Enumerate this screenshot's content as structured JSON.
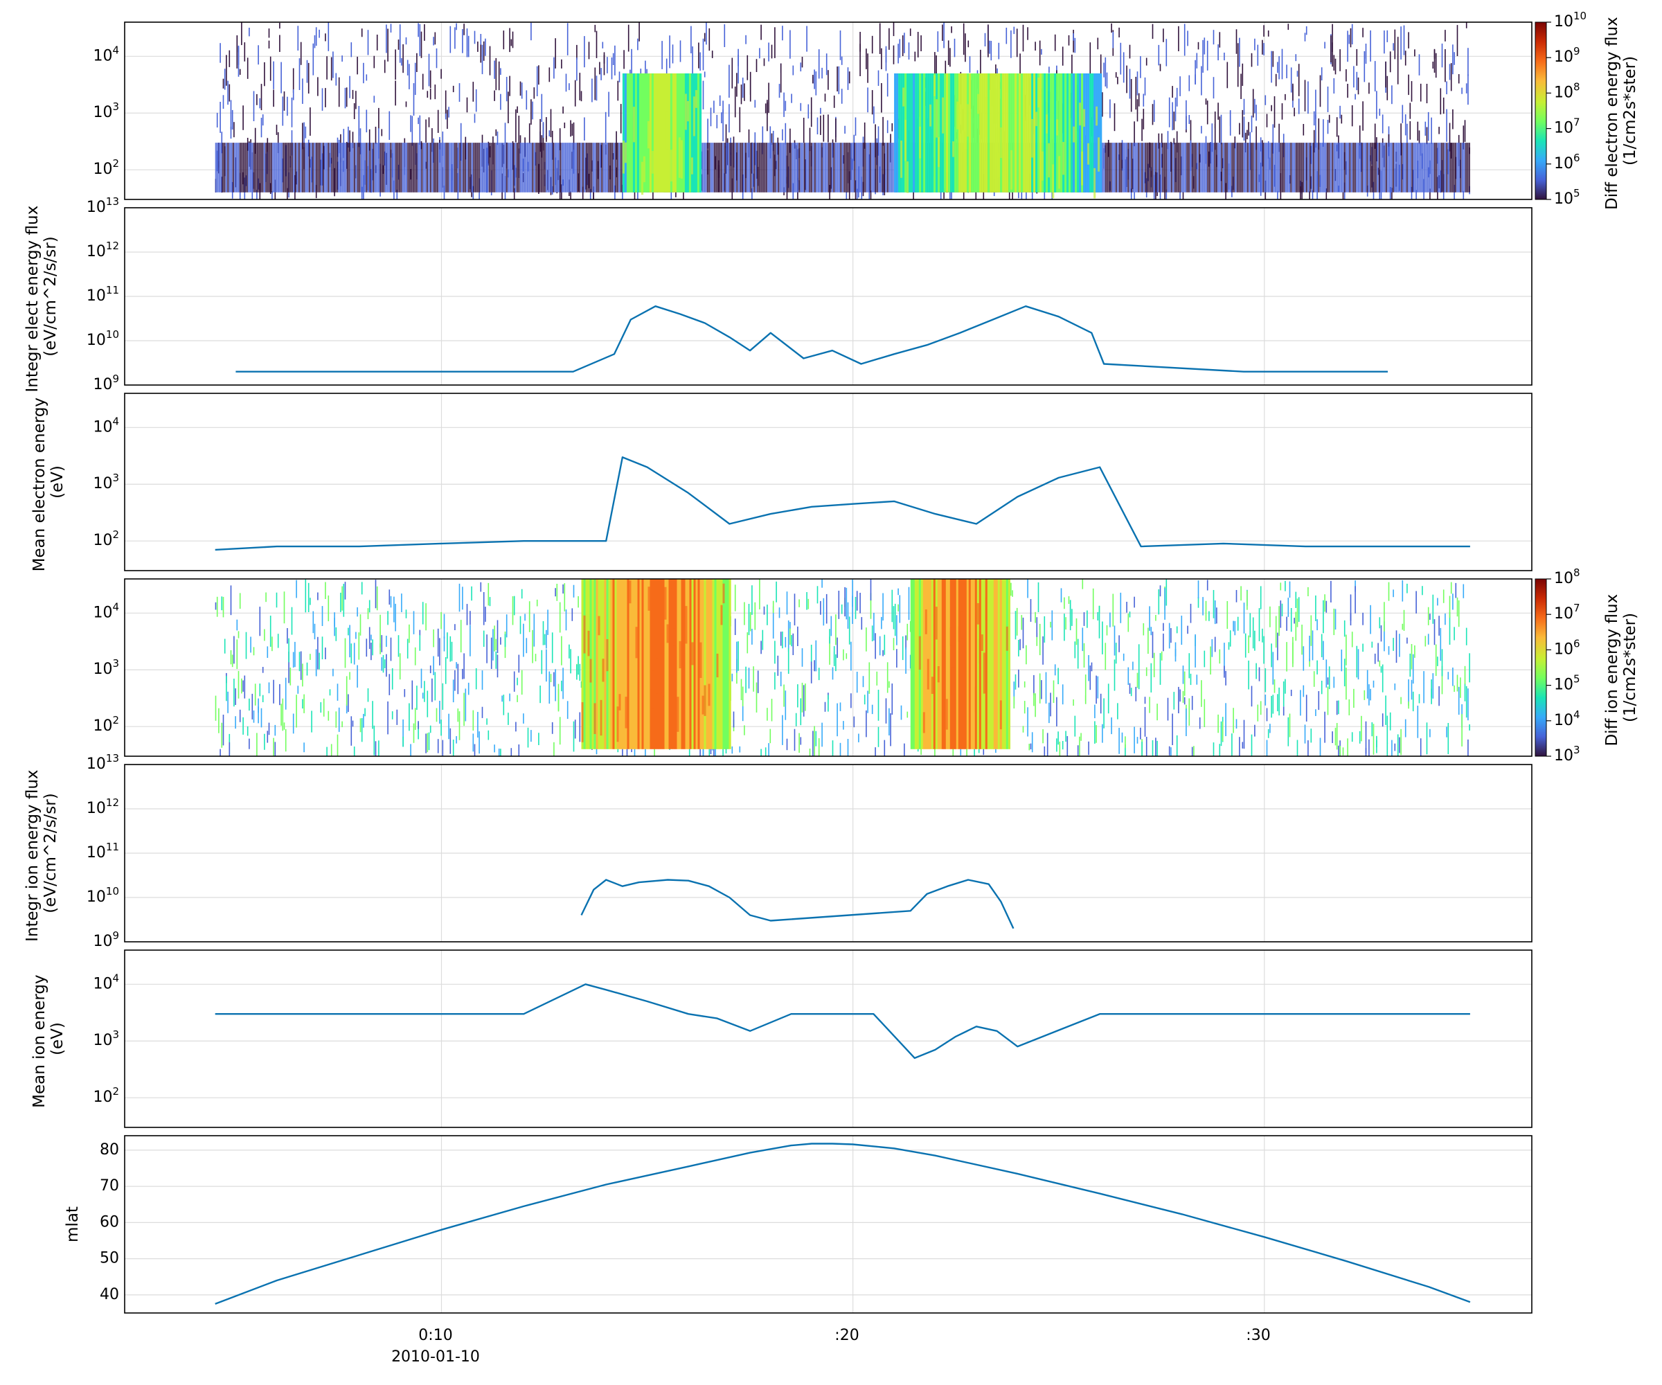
{
  "chart_data": [
    {
      "type": "heatmap",
      "panel": "electron-spectrogram",
      "ylabel": "",
      "yscale": "log",
      "ylim": [
        30,
        40000
      ],
      "ytick_labels": [
        "10^2",
        "10^3",
        "10^4"
      ],
      "colorbar": {
        "label_lines": [
          "Diff electron energy flux",
          "(1/cm2s*ster)"
        ],
        "scale": "log",
        "range": [
          100000,
          10000000000
        ],
        "tick_labels": [
          "10^5",
          "10^6",
          "10^7",
          "10^8",
          "10^9",
          "10^10"
        ]
      },
      "active_intervals_min": [
        [
          14.4,
          16.3
        ],
        [
          21.0,
          26.0
        ]
      ],
      "sparse_interval_min": [
        4.5,
        35.0
      ]
    },
    {
      "type": "line",
      "panel": "integrated-electron-energy-flux",
      "ylabel_lines": [
        "Integr elect energy flux",
        "(eV/cm^2/s/sr)"
      ],
      "yscale": "log",
      "ylim": [
        1000000000,
        10000000000000
      ],
      "ytick_labels": [
        "10^9",
        "10^10",
        "10^11",
        "10^12",
        "10^13"
      ],
      "x": [
        5.0,
        9.8,
        13.2,
        14.2,
        14.6,
        15.2,
        15.8,
        16.4,
        17.0,
        17.5,
        18.0,
        18.8,
        19.5,
        20.2,
        21.0,
        21.8,
        22.6,
        23.4,
        24.2,
        25.0,
        25.8,
        26.1,
        29.5,
        33.0
      ],
      "y": [
        2000000000,
        2000000000,
        2000000000,
        5000000000,
        30000000000,
        60000000000,
        40000000000,
        25000000000,
        12000000000,
        6000000000,
        15000000000,
        4000000000,
        6000000000,
        3000000000,
        5000000000,
        8000000000,
        15000000000,
        30000000000,
        60000000000,
        35000000000,
        15000000000,
        3000000000,
        2000000000,
        2000000000
      ]
    },
    {
      "type": "line",
      "panel": "mean-electron-energy",
      "ylabel_lines": [
        "Mean electron energy",
        "(eV)"
      ],
      "yscale": "log",
      "ylim": [
        30,
        40000
      ],
      "ytick_labels": [
        "10^2",
        "10^3",
        "10^4"
      ],
      "x": [
        4.5,
        6.0,
        8.0,
        10.0,
        12.0,
        14.0,
        14.4,
        15.0,
        16.0,
        17.0,
        18.0,
        19.0,
        20.0,
        21.0,
        22.0,
        23.0,
        24.0,
        25.0,
        26.0,
        27.0,
        29.0,
        31.0,
        33.0,
        35.0
      ],
      "y": [
        70,
        80,
        80,
        90,
        100,
        100,
        3000,
        2000,
        700,
        200,
        300,
        400,
        450,
        500,
        300,
        200,
        600,
        1300,
        2000,
        80,
        90,
        80,
        80,
        80
      ]
    },
    {
      "type": "heatmap",
      "panel": "ion-spectrogram",
      "ylabel": "",
      "yscale": "log",
      "ylim": [
        30,
        40000
      ],
      "ytick_labels": [
        "10^2",
        "10^3",
        "10^4"
      ],
      "colorbar": {
        "label_lines": [
          "Diff ion energy flux",
          "(1/cm2s*ster)"
        ],
        "scale": "log",
        "range": [
          1000,
          100000000
        ],
        "tick_labels": [
          "10^3",
          "10^4",
          "10^5",
          "10^6",
          "10^7",
          "10^8"
        ]
      },
      "active_intervals_min": [
        [
          13.4,
          17.0
        ],
        [
          21.4,
          23.8
        ]
      ],
      "sparse_interval_min": [
        4.5,
        35.0
      ]
    },
    {
      "type": "line",
      "panel": "integrated-ion-energy-flux",
      "ylabel_lines": [
        "Integr ion energy flux",
        "(eV/cm^2/s/sr)"
      ],
      "yscale": "log",
      "ylim": [
        1000000000,
        10000000000000
      ],
      "ytick_labels": [
        "10^9",
        "10^10",
        "10^11",
        "10^12",
        "10^13"
      ],
      "x": [
        13.4,
        13.7,
        14.0,
        14.4,
        14.8,
        15.5,
        16.0,
        16.5,
        17.0,
        17.5,
        18.0,
        21.4,
        21.8,
        22.3,
        22.8,
        23.3,
        23.6,
        23.9
      ],
      "y": [
        4000000000,
        15000000000,
        25000000000,
        18000000000,
        22000000000,
        25000000000,
        24000000000,
        18000000000,
        10000000000,
        4000000000,
        3000000000,
        5000000000,
        12000000000,
        18000000000,
        25000000000,
        20000000000,
        8000000000,
        2000000000
      ]
    },
    {
      "type": "line",
      "panel": "mean-ion-energy",
      "ylabel_lines": [
        "Mean ion energy",
        "(eV)"
      ],
      "yscale": "log",
      "ylim": [
        30,
        40000
      ],
      "ytick_labels": [
        "10^2",
        "10^3",
        "10^4"
      ],
      "x": [
        4.5,
        6.0,
        8.0,
        10.0,
        12.0,
        13.5,
        14.0,
        15.0,
        16.0,
        16.7,
        17.5,
        18.5,
        19.5,
        20.5,
        21.5,
        22.0,
        22.5,
        23.0,
        23.5,
        24.0,
        26.0,
        28.0,
        30.0,
        32.0,
        35.0
      ],
      "y": [
        3000,
        3000,
        3000,
        3000,
        3000,
        10000,
        8000,
        5000,
        3000,
        2500,
        1500,
        3000,
        3000,
        3000,
        500,
        700,
        1200,
        1800,
        1500,
        800,
        3000,
        3000,
        3000,
        3000,
        3000
      ]
    },
    {
      "type": "line",
      "panel": "mlat",
      "ylabel_lines": [
        "mlat"
      ],
      "ylim": [
        35,
        84
      ],
      "yticks": [
        40,
        50,
        60,
        70,
        80
      ],
      "x": [
        4.5,
        6.0,
        8.0,
        10.0,
        12.0,
        14.0,
        16.0,
        17.5,
        18.5,
        19.0,
        19.5,
        20.0,
        21.0,
        22.0,
        24.0,
        26.0,
        28.0,
        30.0,
        32.0,
        34.0,
        35.0
      ],
      "y": [
        37.5,
        44.0,
        51.0,
        58.0,
        64.5,
        70.5,
        75.5,
        79.3,
        81.3,
        81.8,
        81.8,
        81.6,
        80.5,
        78.5,
        73.5,
        68.0,
        62.3,
        56.0,
        49.3,
        42.2,
        38.0
      ]
    }
  ],
  "x_axis": {
    "xlim_minutes": [
      2.3,
      36.5
    ],
    "ticks": [
      {
        "minute": 10,
        "label": "0:10",
        "sublabel": "2010-01-10"
      },
      {
        "minute": 20,
        "label": ":20",
        "sublabel": ""
      },
      {
        "minute": 30,
        "label": ":30",
        "sublabel": ""
      }
    ]
  },
  "colors": {
    "trace": "#0a72b0",
    "grid": "#dcdcdc"
  },
  "colormap": [
    "#30123b",
    "#4662d7",
    "#36aaf9",
    "#1ae4b6",
    "#72fe5e",
    "#c7ef34",
    "#faba39",
    "#f66b19",
    "#ca2a04",
    "#7a0403"
  ]
}
